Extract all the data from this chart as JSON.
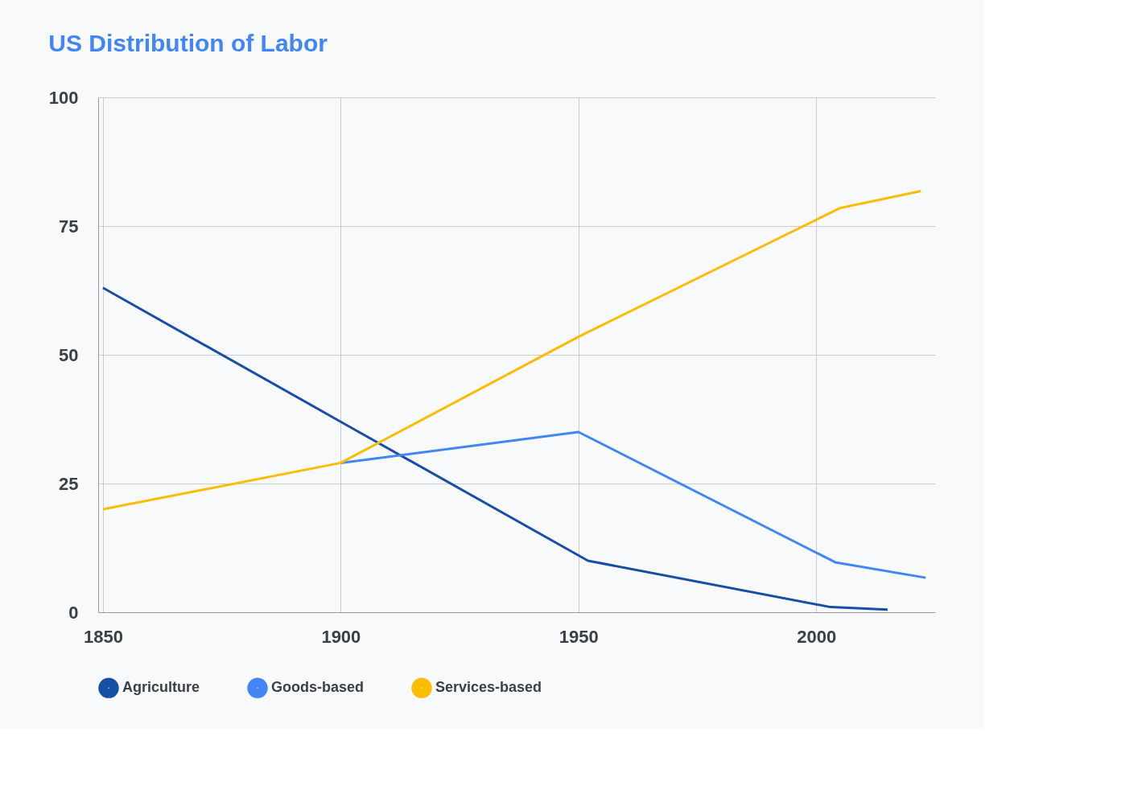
{
  "chart_data": {
    "type": "line",
    "title": "US Distribution of Labor",
    "xlim": [
      1849,
      2025
    ],
    "xticks": [
      1850,
      1900,
      1950,
      2000
    ],
    "ylim": [
      0,
      100
    ],
    "yticks": [
      0,
      25,
      50,
      75,
      100
    ],
    "grid": true,
    "legend": "bottom",
    "line_style": "solid",
    "marker": "none",
    "series": [
      {
        "name": "Agriculture",
        "color": "#174ea6",
        "x": [
          1850,
          1900,
          1952,
          2003,
          2015
        ],
        "values": [
          63,
          37,
          10,
          1,
          0.5
        ]
      },
      {
        "name": "Goods-based",
        "color": "#4285f4",
        "x": [
          1900,
          1950,
          2004,
          2023
        ],
        "values": [
          29,
          35,
          9.7,
          6.7
        ]
      },
      {
        "name": "Services-based",
        "color": "#fbbc04",
        "x": [
          1850,
          1900,
          1950,
          2005,
          2022
        ],
        "values": [
          20,
          29,
          53.5,
          78.5,
          81.8
        ]
      }
    ]
  }
}
